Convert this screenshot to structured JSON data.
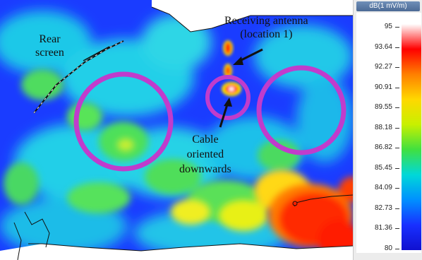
{
  "colorbar": {
    "unit_label": "dB(1 mV/m)",
    "ticks": [
      "95",
      "93.64",
      "92.27",
      "90.91",
      "89.55",
      "88.18",
      "86.82",
      "85.45",
      "84.09",
      "82.73",
      "81.36",
      "80"
    ],
    "gradient_colors": [
      "#ffffff",
      "#ff0000",
      "#ff7f00",
      "#ffd800",
      "#c8f000",
      "#40e040",
      "#00d8d8",
      "#0090ff",
      "#1830ff",
      "#1010d0"
    ]
  },
  "annotations": {
    "rear_screen": [
      "Rear",
      "screen"
    ],
    "receiving_antenna": [
      "Receiving antenna",
      "(location 1)"
    ],
    "cable": [
      "Cable",
      "oriented",
      "downwards"
    ]
  },
  "colors": {
    "circle": "#c03ccc",
    "background_field": "#1a3cff",
    "hot_spot": "#ff1a00"
  }
}
